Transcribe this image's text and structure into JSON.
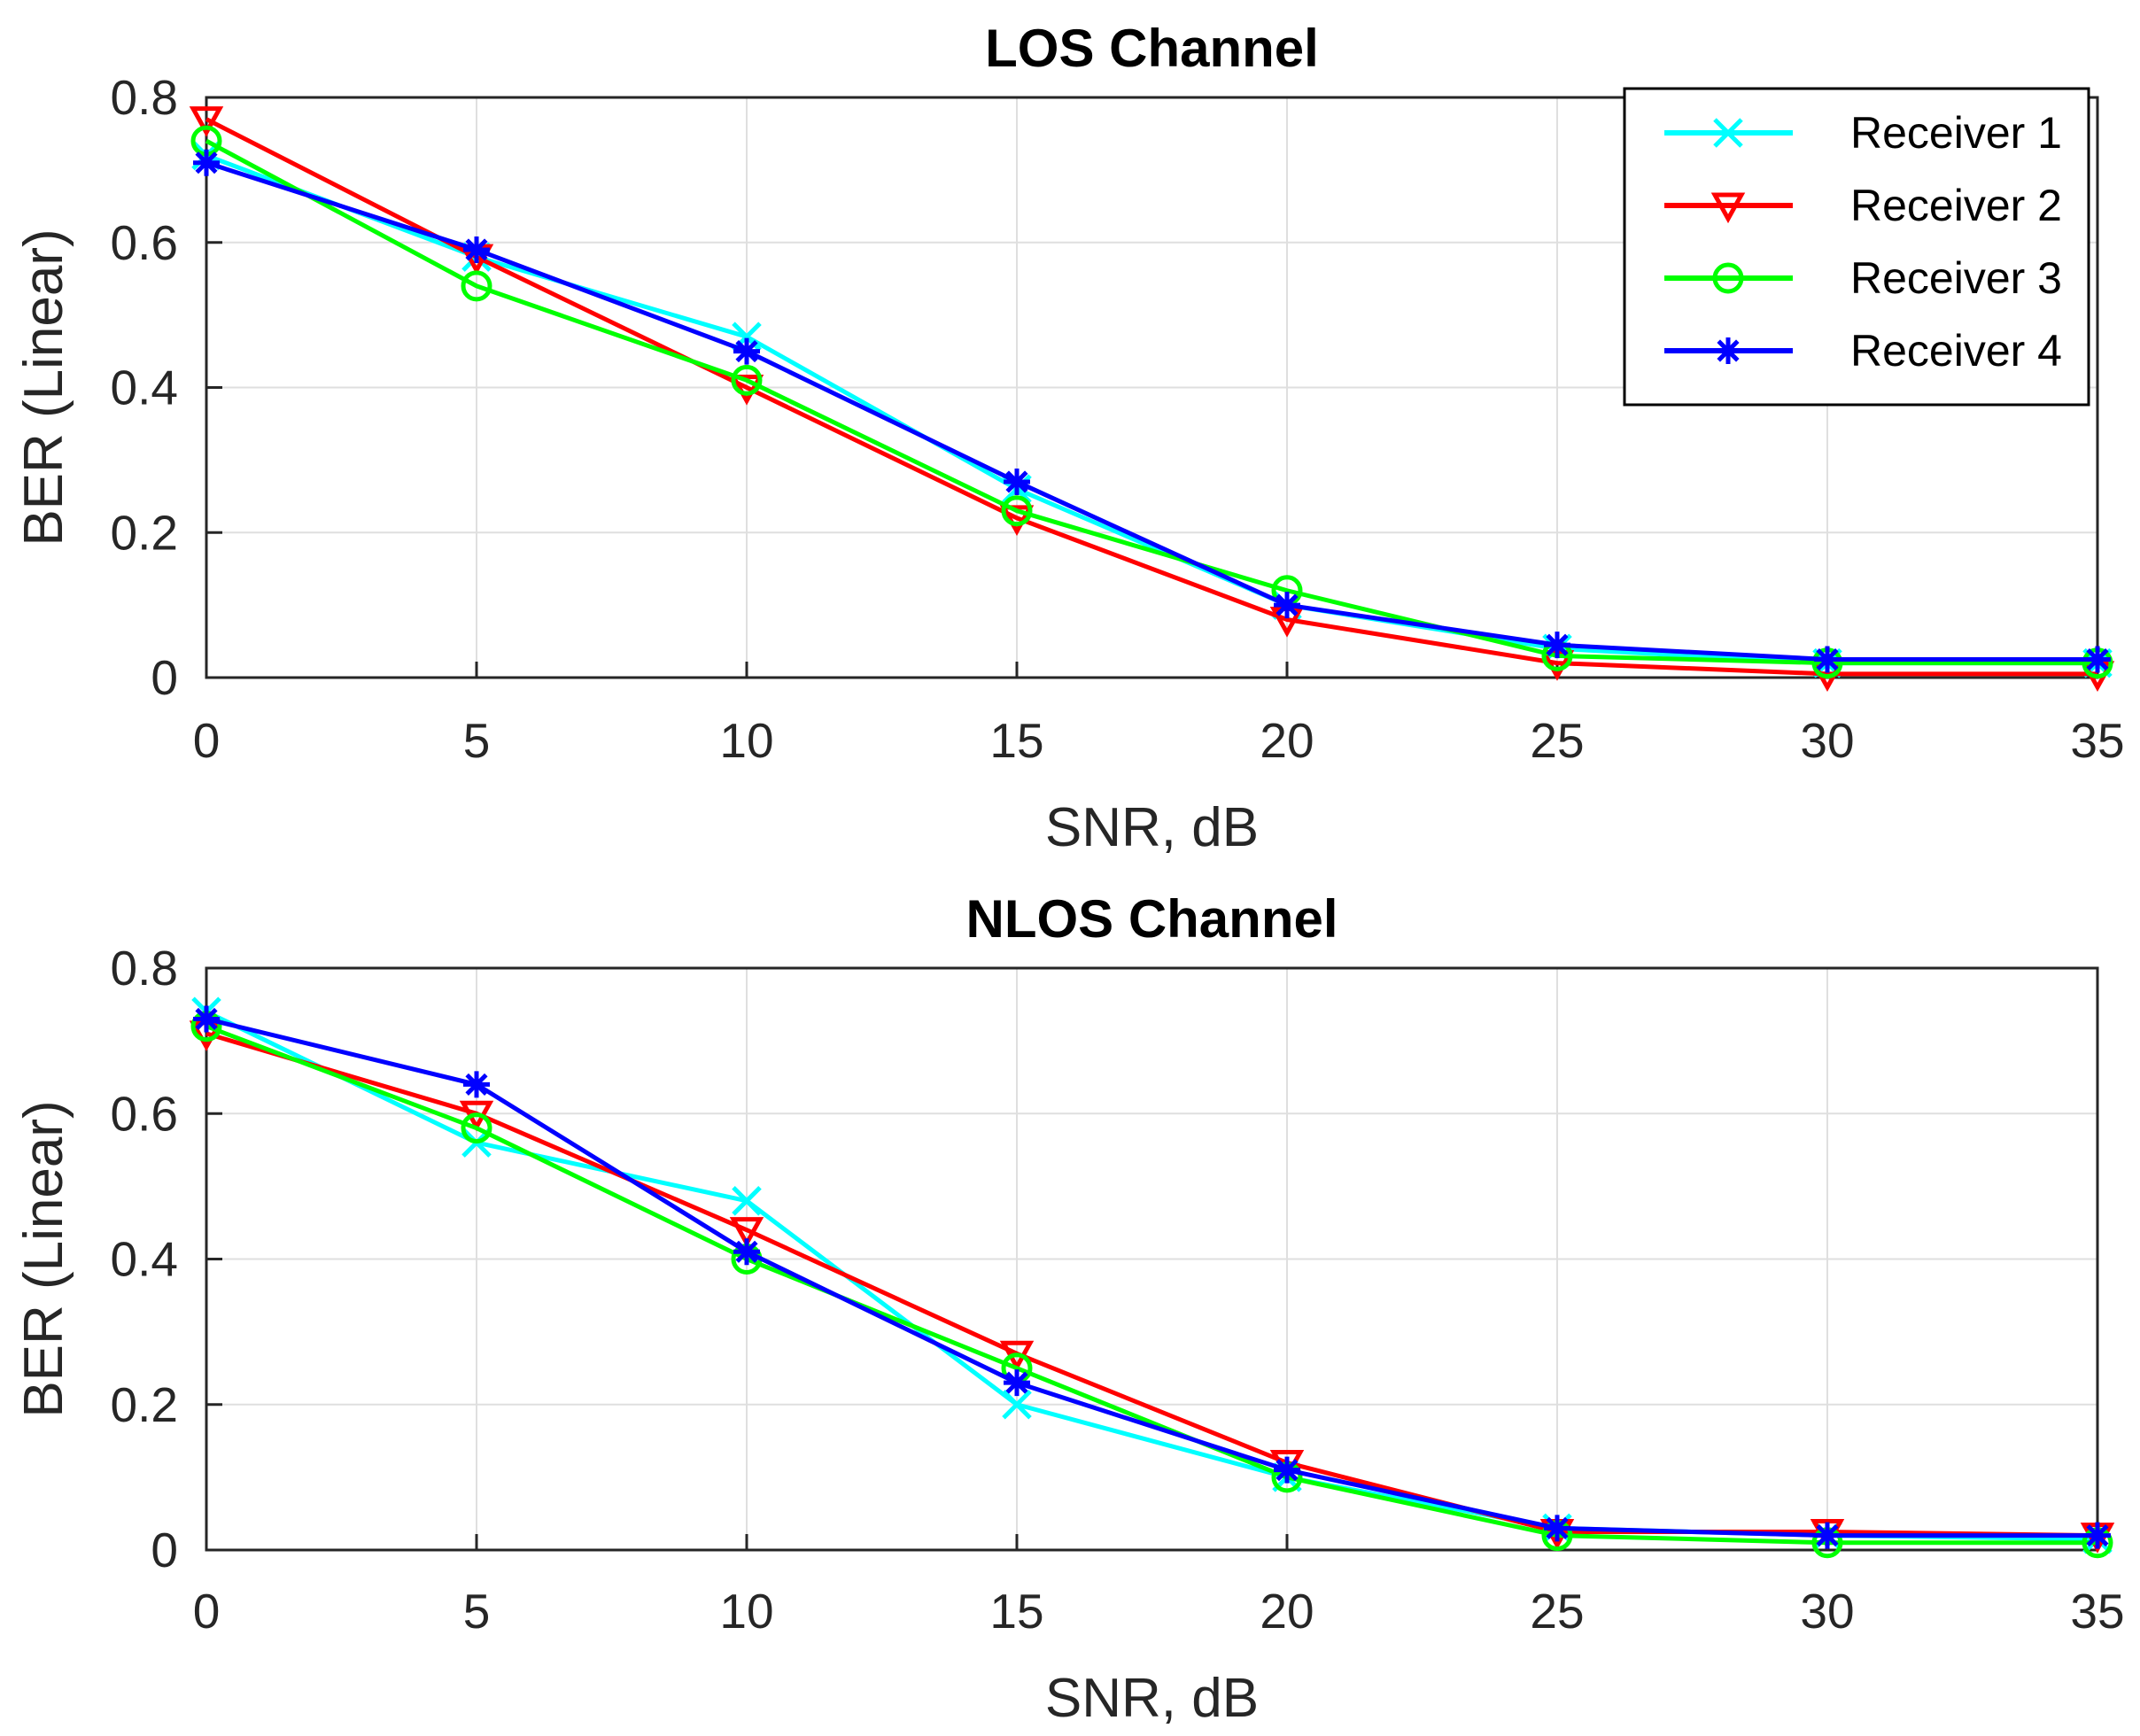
{
  "chart_data": [
    {
      "type": "line",
      "title": "LOS Channel",
      "xlabel": "SNR, dB",
      "ylabel": "BER (Linear)",
      "x": [
        0,
        5,
        10,
        15,
        20,
        25,
        30,
        35
      ],
      "xlim": [
        0,
        35
      ],
      "ylim": [
        0,
        0.8
      ],
      "xticks": [
        "0",
        "5",
        "10",
        "15",
        "20",
        "25",
        "30",
        "35"
      ],
      "yticks": [
        "0",
        "0.2",
        "0.4",
        "0.6",
        "0.8"
      ],
      "grid": true,
      "legend_position": "top-right",
      "series": [
        {
          "name": "Receiver 1",
          "color": "#00ffff",
          "marker": "x",
          "values": [
            0.72,
            0.58,
            0.47,
            0.26,
            0.1,
            0.04,
            0.02,
            0.02
          ]
        },
        {
          "name": "Receiver 2",
          "color": "#ff0000",
          "marker": "triangle-down",
          "values": [
            0.77,
            0.58,
            0.4,
            0.22,
            0.08,
            0.02,
            0.005,
            0.005
          ]
        },
        {
          "name": "Receiver 3",
          "color": "#00ff00",
          "marker": "circle",
          "values": [
            0.74,
            0.54,
            0.41,
            0.23,
            0.12,
            0.03,
            0.02,
            0.02
          ]
        },
        {
          "name": "Receiver 4",
          "color": "#0000ff",
          "marker": "asterisk",
          "values": [
            0.71,
            0.59,
            0.45,
            0.27,
            0.1,
            0.045,
            0.025,
            0.025
          ]
        }
      ]
    },
    {
      "type": "line",
      "title": "NLOS Channel",
      "xlabel": "SNR, dB",
      "ylabel": "BER (Linear)",
      "x": [
        0,
        5,
        10,
        15,
        20,
        25,
        30,
        35
      ],
      "xlim": [
        0,
        35
      ],
      "ylim": [
        0,
        0.8
      ],
      "xticks": [
        "0",
        "5",
        "10",
        "15",
        "20",
        "25",
        "30",
        "35"
      ],
      "yticks": [
        "0",
        "0.2",
        "0.4",
        "0.6",
        "0.8"
      ],
      "grid": true,
      "legend_position": "none",
      "series": [
        {
          "name": "Receiver 1",
          "color": "#00ffff",
          "marker": "x",
          "values": [
            0.74,
            0.56,
            0.48,
            0.2,
            0.1,
            0.03,
            0.02,
            0.015
          ]
        },
        {
          "name": "Receiver 2",
          "color": "#ff0000",
          "marker": "triangle-down",
          "values": [
            0.71,
            0.6,
            0.44,
            0.27,
            0.12,
            0.025,
            0.025,
            0.02
          ]
        },
        {
          "name": "Receiver 3",
          "color": "#00ff00",
          "marker": "circle",
          "values": [
            0.72,
            0.58,
            0.4,
            0.25,
            0.1,
            0.02,
            0.01,
            0.01
          ]
        },
        {
          "name": "Receiver 4",
          "color": "#0000ff",
          "marker": "asterisk",
          "values": [
            0.73,
            0.64,
            0.41,
            0.23,
            0.11,
            0.03,
            0.02,
            0.02
          ]
        }
      ]
    }
  ]
}
